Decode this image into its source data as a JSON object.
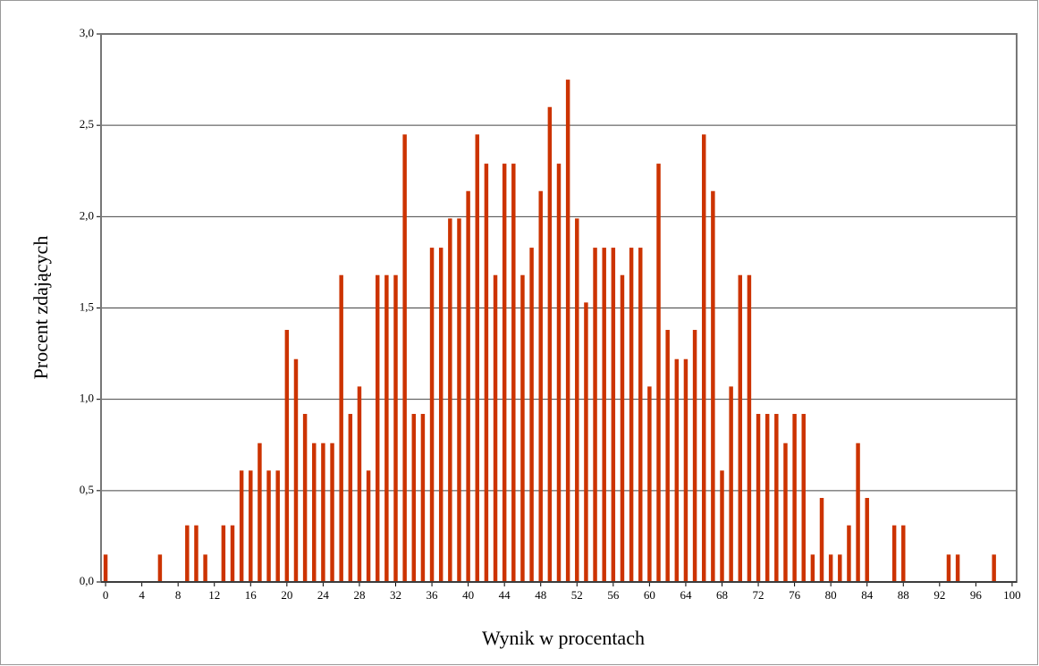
{
  "chart_data": {
    "type": "bar",
    "x_label": "Wynik w procentach",
    "y_label": "Procent zdających",
    "x": [
      0,
      1,
      2,
      3,
      4,
      5,
      6,
      7,
      8,
      9,
      10,
      11,
      12,
      13,
      14,
      15,
      16,
      17,
      18,
      19,
      20,
      21,
      22,
      23,
      24,
      25,
      26,
      27,
      28,
      29,
      30,
      31,
      32,
      33,
      34,
      35,
      36,
      37,
      38,
      39,
      40,
      41,
      42,
      43,
      44,
      45,
      46,
      47,
      48,
      49,
      50,
      51,
      52,
      53,
      54,
      55,
      56,
      57,
      58,
      59,
      60,
      61,
      62,
      63,
      64,
      65,
      66,
      67,
      68,
      69,
      70,
      71,
      72,
      73,
      74,
      75,
      76,
      77,
      78,
      79,
      80,
      81,
      82,
      83,
      84,
      85,
      86,
      87,
      88,
      89,
      90,
      91,
      92,
      93,
      94,
      95,
      96,
      97,
      98,
      99,
      100
    ],
    "values": [
      0.15,
      0,
      0,
      0,
      0,
      0,
      0.15,
      0,
      0,
      0.31,
      0.31,
      0.15,
      0,
      0.31,
      0.31,
      0.61,
      0.61,
      0.76,
      0.61,
      0.61,
      1.38,
      1.22,
      0.92,
      0.76,
      0.76,
      0.76,
      1.68,
      0.92,
      1.07,
      0.61,
      1.68,
      1.68,
      1.68,
      2.45,
      0.92,
      0.92,
      1.83,
      1.83,
      1.99,
      1.99,
      2.14,
      2.45,
      2.29,
      1.68,
      2.29,
      2.29,
      1.68,
      1.83,
      2.14,
      2.6,
      2.29,
      2.75,
      1.99,
      1.53,
      1.83,
      1.83,
      1.83,
      1.68,
      1.83,
      1.83,
      1.07,
      2.29,
      1.38,
      1.22,
      1.22,
      1.38,
      2.45,
      2.14,
      0.61,
      1.07,
      1.68,
      1.68,
      0.92,
      0.92,
      0.92,
      0.76,
      0.92,
      0.92,
      0.15,
      0.46,
      0.15,
      0.15,
      0.31,
      0.76,
      0.46,
      0,
      0,
      0.31,
      0.31,
      0,
      0,
      0,
      0,
      0.15,
      0.15,
      0,
      0,
      0,
      0.15,
      0,
      0
    ],
    "color": "#cc3300",
    "xlim": [
      -0.5,
      100.5
    ],
    "xticks": [
      0,
      4,
      8,
      12,
      16,
      20,
      24,
      28,
      32,
      36,
      40,
      44,
      48,
      52,
      56,
      60,
      64,
      68,
      72,
      76,
      80,
      84,
      88,
      92,
      96,
      100
    ],
    "ylim": [
      0,
      3
    ],
    "yticks": [
      {
        "value": 0,
        "label": "0,0"
      },
      {
        "value": 0.5,
        "label": "0,5"
      },
      {
        "value": 1,
        "label": "1,0"
      },
      {
        "value": 1.5,
        "label": "1,5"
      },
      {
        "value": 2,
        "label": "2,0"
      },
      {
        "value": 2.5,
        "label": "2,5"
      },
      {
        "value": 3,
        "label": "3,0"
      }
    ],
    "grid": true
  }
}
